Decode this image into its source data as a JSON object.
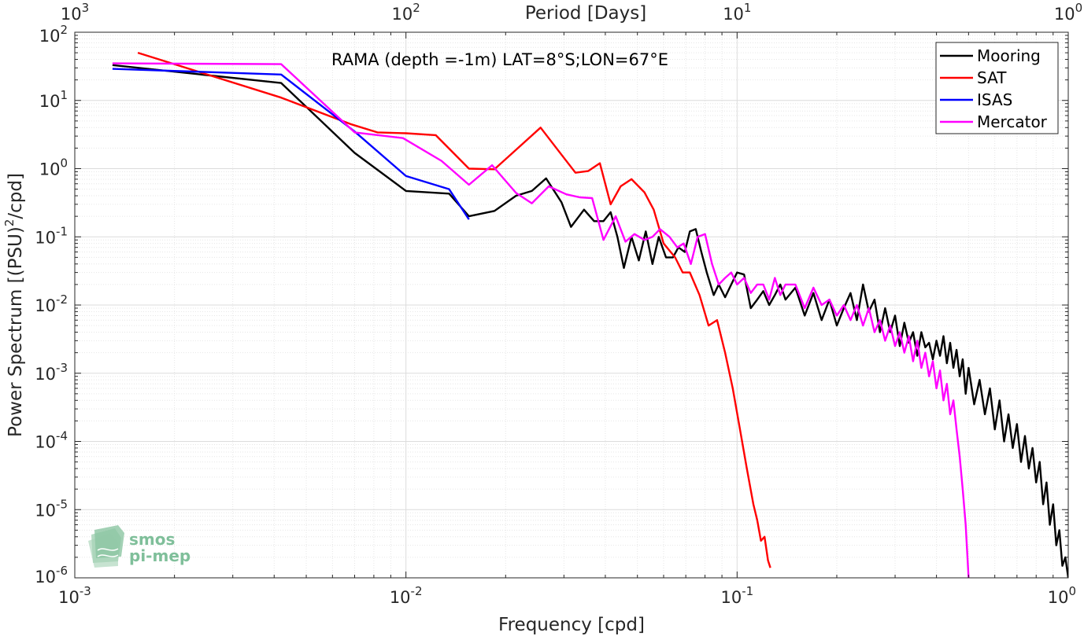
{
  "chart_data": {
    "type": "line",
    "title": "RAMA (depth =-1m) LAT=8°S;LON=67°E",
    "xlabel": "Frequency [cpd]",
    "ylabel_main": "Power Spectrum [(PSU)",
    "ylabel_sup": "2",
    "ylabel_tail": "/cpd]",
    "top_xlabel": "Period [Days]",
    "x_scale": "log",
    "y_scale": "log",
    "xlim": [
      0.001,
      1
    ],
    "ylim": [
      1e-06,
      100
    ],
    "grid": true,
    "minor_grid": true,
    "legend_position": "top-right",
    "x_ticks": [
      0.001,
      0.01,
      0.1,
      1
    ],
    "x_tick_labels": [
      {
        "base": "10",
        "exp": "-3"
      },
      {
        "base": "10",
        "exp": "-2"
      },
      {
        "base": "10",
        "exp": "-1"
      },
      {
        "base": "10",
        "exp": "0"
      }
    ],
    "y_ticks": [
      1e-06,
      1e-05,
      0.0001,
      0.001,
      0.01,
      0.1,
      1,
      10,
      100
    ],
    "y_tick_labels": [
      {
        "base": "10",
        "exp": "-6"
      },
      {
        "base": "10",
        "exp": "-5"
      },
      {
        "base": "10",
        "exp": "-4"
      },
      {
        "base": "10",
        "exp": "-3"
      },
      {
        "base": "10",
        "exp": "-2"
      },
      {
        "base": "10",
        "exp": "-1"
      },
      {
        "base": "10",
        "exp": "0"
      },
      {
        "base": "10",
        "exp": "1"
      },
      {
        "base": "10",
        "exp": "2"
      }
    ],
    "top_ticks": [
      0.001,
      0.01,
      0.1,
      1
    ],
    "top_tick_labels": [
      {
        "base": "10",
        "exp": "3"
      },
      {
        "base": "10",
        "exp": "2"
      },
      {
        "base": "10",
        "exp": "1"
      },
      {
        "base": "10",
        "exp": "0"
      }
    ],
    "series": [
      {
        "name": "Mooring",
        "color": "#000000",
        "points": [
          [
            0.0013,
            33
          ],
          [
            0.0042,
            18
          ],
          [
            0.007,
            1.7
          ],
          [
            0.01,
            0.47
          ],
          [
            0.0135,
            0.43
          ],
          [
            0.0155,
            0.2
          ],
          [
            0.0185,
            0.24
          ],
          [
            0.0215,
            0.4
          ],
          [
            0.024,
            0.47
          ],
          [
            0.0265,
            0.72
          ],
          [
            0.0295,
            0.32
          ],
          [
            0.0315,
            0.14
          ],
          [
            0.0345,
            0.25
          ],
          [
            0.037,
            0.17
          ],
          [
            0.0395,
            0.17
          ],
          [
            0.0415,
            0.23
          ],
          [
            0.0435,
            0.1
          ],
          [
            0.0455,
            0.035
          ],
          [
            0.048,
            0.1
          ],
          [
            0.0505,
            0.045
          ],
          [
            0.053,
            0.12
          ],
          [
            0.0555,
            0.04
          ],
          [
            0.058,
            0.1
          ],
          [
            0.061,
            0.05
          ],
          [
            0.064,
            0.05
          ],
          [
            0.0665,
            0.07
          ],
          [
            0.0695,
            0.06
          ],
          [
            0.072,
            0.12
          ],
          [
            0.075,
            0.13
          ],
          [
            0.078,
            0.06
          ],
          [
            0.081,
            0.03
          ],
          [
            0.085,
            0.014
          ],
          [
            0.088,
            0.02
          ],
          [
            0.092,
            0.013
          ],
          [
            0.096,
            0.02
          ],
          [
            0.1,
            0.03
          ],
          [
            0.105,
            0.028
          ],
          [
            0.11,
            0.009
          ],
          [
            0.115,
            0.012
          ],
          [
            0.12,
            0.016
          ],
          [
            0.125,
            0.01
          ],
          [
            0.13,
            0.014
          ],
          [
            0.135,
            0.02
          ],
          [
            0.14,
            0.012
          ],
          [
            0.15,
            0.018
          ],
          [
            0.16,
            0.007
          ],
          [
            0.17,
            0.015
          ],
          [
            0.18,
            0.006
          ],
          [
            0.19,
            0.012
          ],
          [
            0.2,
            0.005
          ],
          [
            0.21,
            0.009
          ],
          [
            0.22,
            0.015
          ],
          [
            0.23,
            0.006
          ],
          [
            0.24,
            0.02
          ],
          [
            0.25,
            0.008
          ],
          [
            0.26,
            0.012
          ],
          [
            0.27,
            0.004
          ],
          [
            0.28,
            0.009
          ],
          [
            0.29,
            0.004
          ],
          [
            0.3,
            0.007
          ],
          [
            0.31,
            0.0025
          ],
          [
            0.32,
            0.0055
          ],
          [
            0.33,
            0.0028
          ],
          [
            0.34,
            0.004
          ],
          [
            0.35,
            0.0018
          ],
          [
            0.36,
            0.004
          ],
          [
            0.37,
            0.0024
          ],
          [
            0.38,
            0.0028
          ],
          [
            0.39,
            0.0016
          ],
          [
            0.4,
            0.003
          ],
          [
            0.41,
            0.0018
          ],
          [
            0.42,
            0.0035
          ],
          [
            0.43,
            0.0014
          ],
          [
            0.44,
            0.0028
          ],
          [
            0.45,
            0.0012
          ],
          [
            0.46,
            0.0022
          ],
          [
            0.47,
            0.0009
          ],
          [
            0.48,
            0.0016
          ],
          [
            0.49,
            0.0005
          ],
          [
            0.5,
            0.0012
          ],
          [
            0.52,
            0.00035
          ],
          [
            0.54,
            0.0008
          ],
          [
            0.56,
            0.00025
          ],
          [
            0.58,
            0.0006
          ],
          [
            0.6,
            0.00015
          ],
          [
            0.62,
            0.0004
          ],
          [
            0.64,
            0.0001
          ],
          [
            0.66,
            0.00025
          ],
          [
            0.68,
            8e-05
          ],
          [
            0.7,
            0.00018
          ],
          [
            0.72,
            5e-05
          ],
          [
            0.74,
            0.00012
          ],
          [
            0.76,
            4e-05
          ],
          [
            0.78,
            8e-05
          ],
          [
            0.8,
            2.5e-05
          ],
          [
            0.82,
            5e-05
          ],
          [
            0.84,
            1.2e-05
          ],
          [
            0.86,
            2.5e-05
          ],
          [
            0.88,
            6e-06
          ],
          [
            0.9,
            1.2e-05
          ],
          [
            0.92,
            3e-06
          ],
          [
            0.94,
            5e-06
          ],
          [
            0.96,
            1.5e-06
          ],
          [
            0.98,
            2e-06
          ],
          [
            1.0,
            1e-06
          ]
        ]
      },
      {
        "name": "SAT",
        "color": "#ff0000",
        "points": [
          [
            0.00155,
            50
          ],
          [
            0.0042,
            11
          ],
          [
            0.0068,
            4.5
          ],
          [
            0.0082,
            3.4
          ],
          [
            0.01,
            3.3
          ],
          [
            0.0123,
            3.1
          ],
          [
            0.0155,
            1.0
          ],
          [
            0.0185,
            0.98
          ],
          [
            0.0255,
            4.0
          ],
          [
            0.0295,
            1.6
          ],
          [
            0.0325,
            0.87
          ],
          [
            0.0355,
            0.92
          ],
          [
            0.0385,
            1.2
          ],
          [
            0.0415,
            0.3
          ],
          [
            0.0445,
            0.55
          ],
          [
            0.048,
            0.7
          ],
          [
            0.0525,
            0.45
          ],
          [
            0.056,
            0.25
          ],
          [
            0.06,
            0.08
          ],
          [
            0.065,
            0.05
          ],
          [
            0.0685,
            0.03
          ],
          [
            0.072,
            0.03
          ],
          [
            0.077,
            0.014
          ],
          [
            0.082,
            0.005
          ],
          [
            0.087,
            0.006
          ],
          [
            0.092,
            0.002
          ],
          [
            0.097,
            0.0006
          ],
          [
            0.102,
            0.00015
          ],
          [
            0.107,
            4e-05
          ],
          [
            0.112,
            1.2e-05
          ],
          [
            0.115,
            7e-06
          ],
          [
            0.118,
            3.5e-06
          ],
          [
            0.121,
            4e-06
          ],
          [
            0.124,
            1.8e-06
          ],
          [
            0.126,
            1.4e-06
          ]
        ]
      },
      {
        "name": "ISAS",
        "color": "#0000ff",
        "points": [
          [
            0.0013,
            29
          ],
          [
            0.0042,
            24
          ],
          [
            0.007,
            3.5
          ],
          [
            0.01,
            0.78
          ],
          [
            0.0135,
            0.5
          ],
          [
            0.0155,
            0.18
          ]
        ]
      },
      {
        "name": "Mercator",
        "color": "#ff00ff",
        "points": [
          [
            0.0013,
            35
          ],
          [
            0.0042,
            34
          ],
          [
            0.007,
            3.4
          ],
          [
            0.0098,
            2.8
          ],
          [
            0.0128,
            1.3
          ],
          [
            0.0155,
            0.58
          ],
          [
            0.0182,
            1.12
          ],
          [
            0.0215,
            0.44
          ],
          [
            0.024,
            0.31
          ],
          [
            0.027,
            0.55
          ],
          [
            0.0305,
            0.42
          ],
          [
            0.0335,
            0.38
          ],
          [
            0.0365,
            0.37
          ],
          [
            0.0395,
            0.09
          ],
          [
            0.043,
            0.2
          ],
          [
            0.046,
            0.085
          ],
          [
            0.049,
            0.11
          ],
          [
            0.0525,
            0.09
          ],
          [
            0.0555,
            0.1
          ],
          [
            0.0585,
            0.13
          ],
          [
            0.0625,
            0.1
          ],
          [
            0.066,
            0.07
          ],
          [
            0.069,
            0.08
          ],
          [
            0.0725,
            0.04
          ],
          [
            0.076,
            0.1
          ],
          [
            0.08,
            0.11
          ],
          [
            0.084,
            0.04
          ],
          [
            0.088,
            0.02
          ],
          [
            0.092,
            0.025
          ],
          [
            0.096,
            0.03
          ],
          [
            0.1,
            0.02
          ],
          [
            0.105,
            0.025
          ],
          [
            0.11,
            0.015
          ],
          [
            0.115,
            0.02
          ],
          [
            0.12,
            0.02
          ],
          [
            0.125,
            0.012
          ],
          [
            0.13,
            0.025
          ],
          [
            0.135,
            0.014
          ],
          [
            0.14,
            0.02
          ],
          [
            0.15,
            0.02
          ],
          [
            0.16,
            0.009
          ],
          [
            0.17,
            0.018
          ],
          [
            0.18,
            0.01
          ],
          [
            0.19,
            0.012
          ],
          [
            0.2,
            0.007
          ],
          [
            0.21,
            0.01
          ],
          [
            0.22,
            0.006
          ],
          [
            0.23,
            0.01
          ],
          [
            0.24,
            0.005
          ],
          [
            0.25,
            0.009
          ],
          [
            0.26,
            0.004
          ],
          [
            0.27,
            0.006
          ],
          [
            0.28,
            0.003
          ],
          [
            0.29,
            0.005
          ],
          [
            0.3,
            0.0025
          ],
          [
            0.31,
            0.004
          ],
          [
            0.32,
            0.002
          ],
          [
            0.33,
            0.0035
          ],
          [
            0.34,
            0.0015
          ],
          [
            0.35,
            0.003
          ],
          [
            0.36,
            0.0012
          ],
          [
            0.37,
            0.002
          ],
          [
            0.38,
            0.0009
          ],
          [
            0.39,
            0.0015
          ],
          [
            0.4,
            0.0006
          ],
          [
            0.41,
            0.0011
          ],
          [
            0.42,
            0.0004
          ],
          [
            0.43,
            0.0007
          ],
          [
            0.44,
            0.00025
          ],
          [
            0.45,
            0.0004
          ],
          [
            0.46,
            0.00015
          ],
          [
            0.47,
            6e-05
          ],
          [
            0.48,
            2e-05
          ],
          [
            0.49,
            6e-06
          ],
          [
            0.5,
            1e-06
          ]
        ]
      }
    ]
  },
  "logo": {
    "line1": "smos",
    "line2": "pi-mep"
  }
}
